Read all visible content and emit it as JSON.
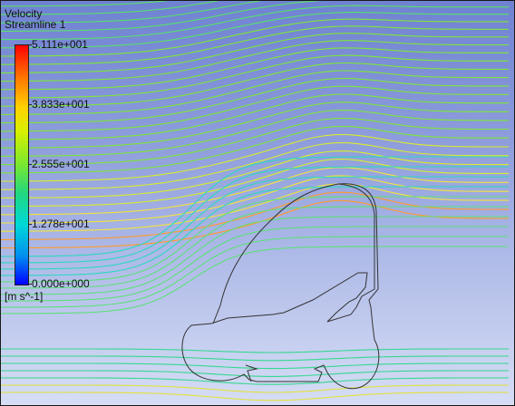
{
  "legend": {
    "variable": "Velocity",
    "object": "Streamline 1",
    "ticks": [
      "5.111e+001",
      "3.833e+001",
      "2.555e+001",
      "1.278e+001",
      "0.000e+000"
    ],
    "units": "[m s^-1]",
    "colormap": [
      "#ff0000",
      "#ff7a00",
      "#ffd200",
      "#78e830",
      "#00d8d8",
      "#0000ff"
    ]
  },
  "background": {
    "top": "#6f82d2",
    "bottom": "#d6ddf5"
  }
}
